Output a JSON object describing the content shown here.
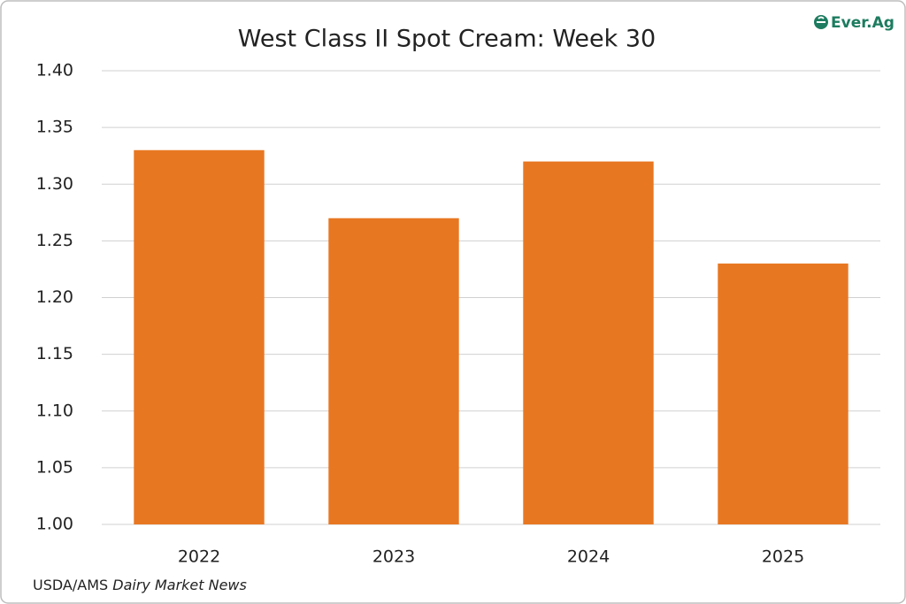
{
  "chart_data": {
    "type": "bar",
    "title": "West Class II Spot Cream: Week 30",
    "categories": [
      "2022",
      "2023",
      "2024",
      "2025"
    ],
    "values": [
      1.33,
      1.27,
      1.32,
      1.23
    ],
    "color": "#e87722",
    "ylim": [
      1.0,
      1.4
    ],
    "yticks": [
      {
        "value": 1.0,
        "label": "1.00"
      },
      1.05,
      {
        "value": 1.1,
        "label": "1.10"
      },
      1.15,
      {
        "value": 1.2,
        "label": "1.20"
      },
      1.25,
      {
        "value": 1.3,
        "label": "1.30"
      },
      1.35,
      {
        "value": 1.4,
        "label": "1.40"
      }
    ],
    "grid": true,
    "source": {
      "agency": "USDA/AMS",
      "publication": "Dairy Market News"
    },
    "logo": "Ever.Ag"
  }
}
